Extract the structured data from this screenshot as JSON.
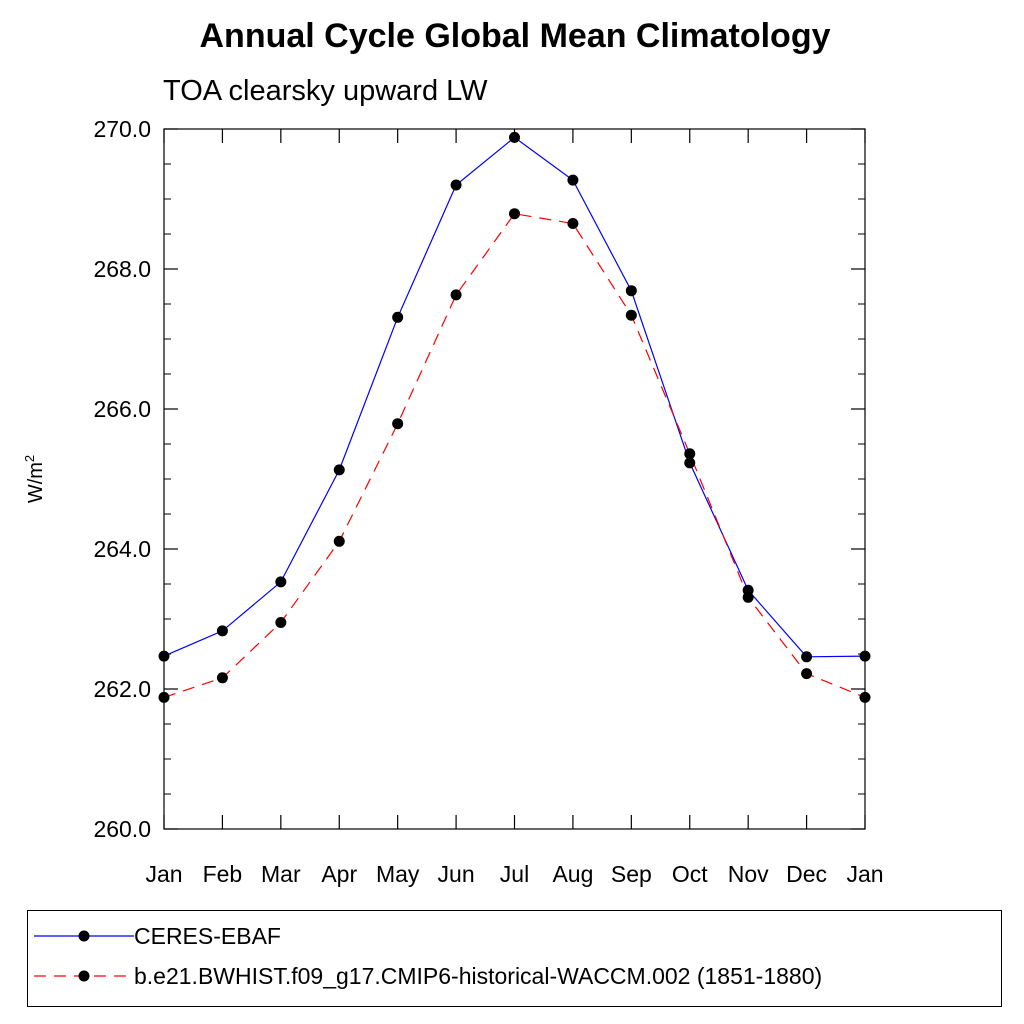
{
  "chart_data": {
    "type": "line",
    "title": "Annual Cycle Global Mean Climatology",
    "subtitle": "TOA clearsky upward LW",
    "ylabel": "W/m",
    "ylabel_sup": "2",
    "ylim": [
      260.0,
      270.0
    ],
    "yticks": [
      "260.0",
      "262.0",
      "264.0",
      "266.0",
      "268.0",
      "270.0"
    ],
    "categories": [
      "Jan",
      "Feb",
      "Mar",
      "Apr",
      "May",
      "Jun",
      "Jul",
      "Aug",
      "Sep",
      "Oct",
      "Nov",
      "Dec",
      "Jan"
    ],
    "series": [
      {
        "name": "CERES-EBAF",
        "color": "#0000ff",
        "dash": "solid",
        "values": [
          262.47,
          262.83,
          263.53,
          265.13,
          267.31,
          269.2,
          269.88,
          269.27,
          267.69,
          265.23,
          263.41,
          262.46,
          262.47
        ]
      },
      {
        "name": "b.e21.BWHIST.f09_g17.CMIP6-historical-WACCM.002 (1851-1880)",
        "color": "#ff0000",
        "dash": "dashed",
        "values": [
          261.88,
          262.16,
          262.95,
          264.11,
          265.79,
          267.63,
          268.79,
          268.65,
          267.34,
          265.36,
          263.31,
          262.22,
          261.88
        ]
      }
    ],
    "grid": false,
    "legend_position": "bottom"
  }
}
